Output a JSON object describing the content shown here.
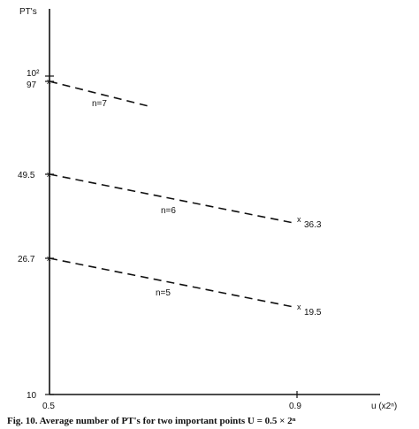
{
  "chart_data": {
    "type": "line",
    "title": "",
    "ylabel": "PT's",
    "xlabel": "u (x2ⁿ)",
    "x_ticks": [
      "0.5",
      "0.9"
    ],
    "y_ticks": [
      "10",
      "26.7",
      "49.5",
      "97",
      "10²"
    ],
    "series": [
      {
        "name": "n=7",
        "x": [
          0.5,
          0.66
        ],
        "y": [
          97,
          69
        ],
        "end_label": ""
      },
      {
        "name": "n=6",
        "x": [
          0.5,
          0.9
        ],
        "y": [
          49.5,
          36.3
        ],
        "end_label": "36.3"
      },
      {
        "name": "n=5",
        "x": [
          0.5,
          0.9
        ],
        "y": [
          26.7,
          19.5
        ],
        "end_label": "19.5"
      }
    ]
  },
  "marker_symbol": "x",
  "caption": "Fig. 10.   Average number of PT's for two important points U = 0.5 × 2ⁿ"
}
